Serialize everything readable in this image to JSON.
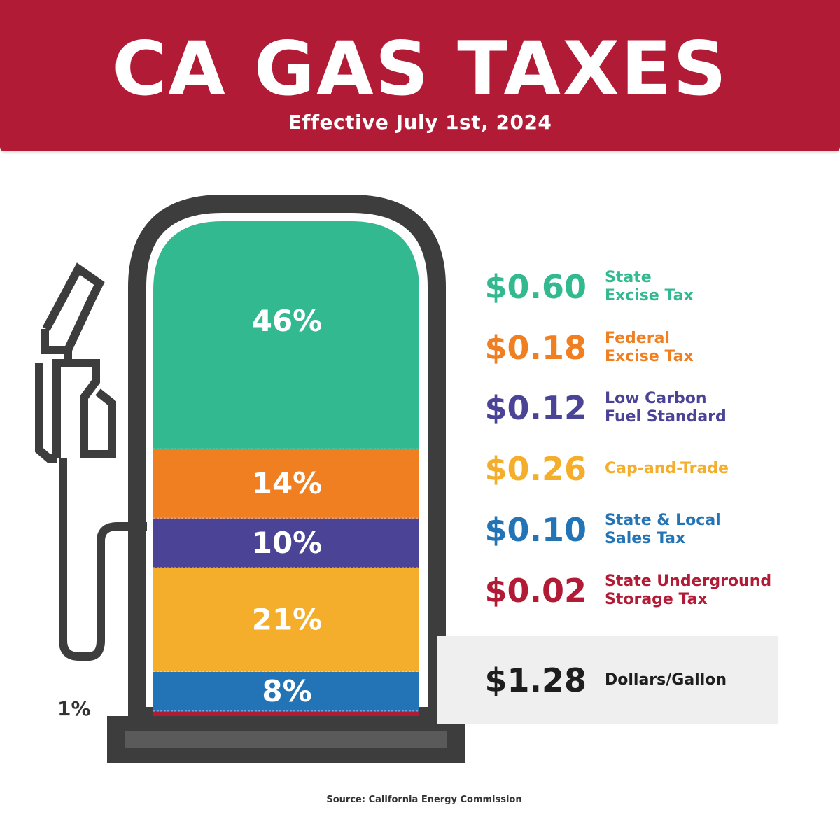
{
  "header": {
    "title": "CA GAS TAXES",
    "subtitle": "Effective July 1st, 2024"
  },
  "colors": {
    "banner": "#b21b36",
    "outline": "#3d3d3d",
    "base_inner": "#5a5a5a"
  },
  "chart_data": {
    "type": "bar",
    "stacked": true,
    "unit": "percent",
    "series": [
      {
        "percent": 46,
        "label": "46%",
        "amount": "$0.60",
        "name": "State Excise Tax",
        "name_lines": [
          "State",
          "Excise Tax"
        ],
        "color": "#33b98f"
      },
      {
        "percent": 14,
        "label": "14%",
        "amount": "$0.18",
        "name": "Federal Excise Tax",
        "name_lines": [
          "Federal",
          "Excise Tax"
        ],
        "color": "#f07f22"
      },
      {
        "percent": 10,
        "label": "10%",
        "amount": "$0.12",
        "name": "Low Carbon Fuel Standard",
        "name_lines": [
          "Low Carbon",
          "Fuel Standard"
        ],
        "color": "#4b4396"
      },
      {
        "percent": 21,
        "label": "21%",
        "amount": "$0.26",
        "name": "Cap-and-Trade",
        "name_lines": [
          "Cap-and-Trade"
        ],
        "color": "#f4ae2b"
      },
      {
        "percent": 8,
        "label": "8%",
        "amount": "$0.10",
        "name": "State & Local Sales Tax",
        "name_lines": [
          "State & Local",
          "Sales Tax"
        ],
        "color": "#2274b6"
      },
      {
        "percent": 1,
        "label": "1%",
        "amount": "$0.02",
        "name": "State Underground Storage Tax",
        "name_lines": [
          "State Underground",
          "Storage Tax"
        ],
        "color": "#b21b36"
      }
    ],
    "total": {
      "amount": "$1.28",
      "label": "Dollars/Gallon",
      "color": "#1e1e1e"
    }
  },
  "source": "Source: California Energy Commission"
}
